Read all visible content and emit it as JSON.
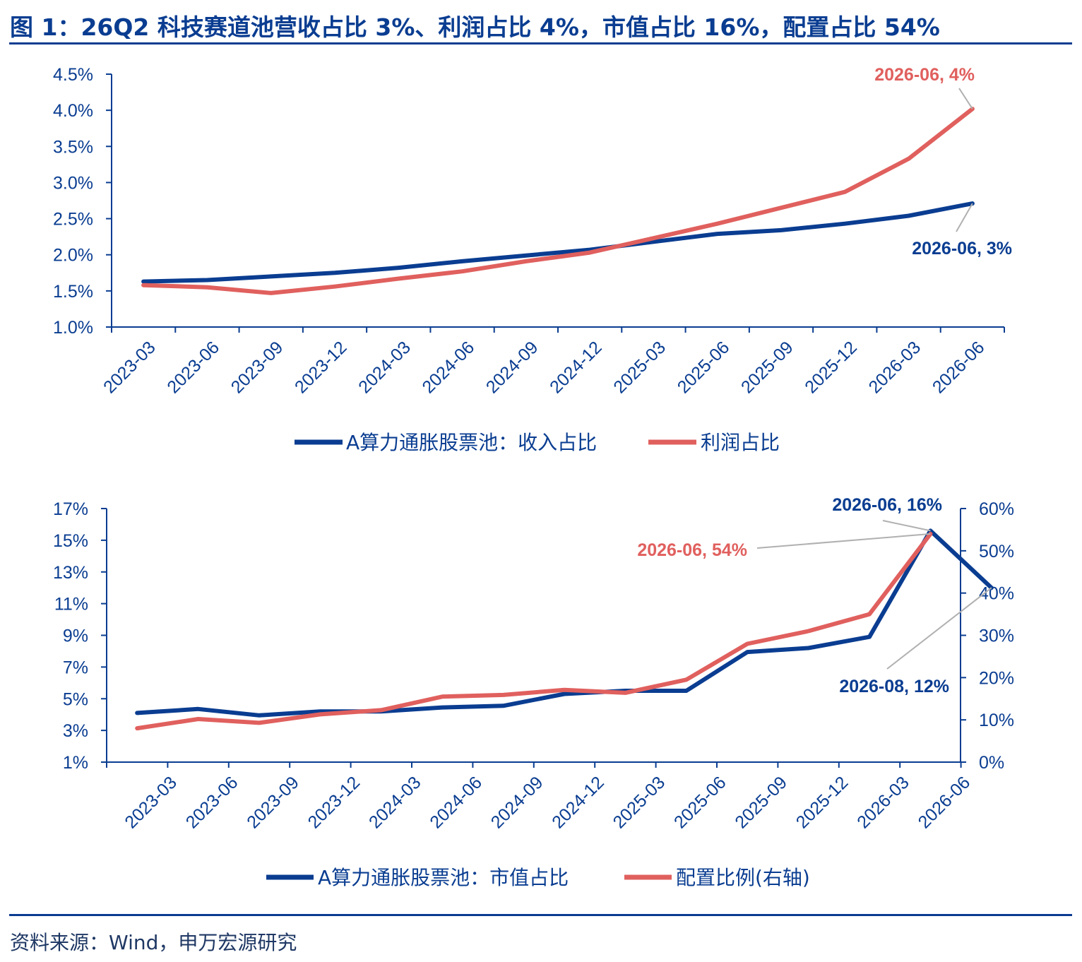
{
  "figure": {
    "title": "图 1：26Q2 科技赛道池营收占比 3%、利润占比 4%，市值占比 16%，配置占比 54%",
    "source": "资料来源：Wind，申万宏源研究"
  },
  "colors": {
    "navy": "#0a3d91",
    "red": "#e0605e",
    "leader": "#b0b0b0"
  },
  "chart_data": [
    {
      "type": "line",
      "categories": [
        "2023-03",
        "2023-06",
        "2023-09",
        "2023-12",
        "2024-03",
        "2024-06",
        "2024-09",
        "2024-12",
        "2025-03",
        "2025-06",
        "2025-09",
        "2025-12",
        "2026-03",
        "2026-06"
      ],
      "yticks": [
        "1.0%",
        "1.5%",
        "2.0%",
        "2.5%",
        "3.0%",
        "3.5%",
        "4.0%",
        "4.5%"
      ],
      "ylim": [
        1.0,
        4.5
      ],
      "series": [
        {
          "name": "A算力通胀股票池：收入占比",
          "color": "#0a3d91",
          "values": [
            1.63,
            1.65,
            1.7,
            1.75,
            1.82,
            1.91,
            1.99,
            2.07,
            2.18,
            2.29,
            2.34,
            2.43,
            2.54,
            2.71
          ]
        },
        {
          "name": "利润占比",
          "color": "#e0605e",
          "values": [
            1.58,
            1.55,
            1.47,
            1.56,
            1.67,
            1.77,
            1.91,
            2.03,
            2.23,
            2.43,
            2.65,
            2.87,
            3.33,
            4.02
          ]
        }
      ],
      "annotations": [
        {
          "text": "2026-06, 4%",
          "series": 1,
          "point": 13
        },
        {
          "text": "2026-06, 3%",
          "series": 0,
          "point": 13
        }
      ],
      "legend": "bottom-center",
      "grid": false
    },
    {
      "type": "line",
      "categories": [
        "2023-03",
        "2023-06",
        "2023-09",
        "2023-12",
        "2024-03",
        "2024-06",
        "2024-09",
        "2024-12",
        "2025-03",
        "2025-06",
        "2025-09",
        "2025-12",
        "2026-03",
        "2026-06"
      ],
      "yticks_left": [
        "1%",
        "3%",
        "5%",
        "7%",
        "9%",
        "11%",
        "13%",
        "15%",
        "17%"
      ],
      "yticks_right": [
        "0%",
        "10%",
        "20%",
        "30%",
        "40%",
        "50%",
        "60%"
      ],
      "ylim_left": [
        1,
        17
      ],
      "ylim_right": [
        0,
        60
      ],
      "series": [
        {
          "name": "A算力通胀股票池：市值占比",
          "color": "#0a3d91",
          "axis": "left",
          "x": [
            0,
            1,
            2,
            3,
            4,
            5,
            6,
            7,
            8,
            9,
            10,
            11,
            12,
            13,
            14
          ],
          "values": [
            4.1,
            4.35,
            3.95,
            4.2,
            4.2,
            4.45,
            4.55,
            5.3,
            5.5,
            5.5,
            7.95,
            8.2,
            8.9,
            15.6,
            12.0
          ]
        },
        {
          "name": "配置比例(右轴)",
          "color": "#e0605e",
          "axis": "right",
          "x": [
            0,
            1,
            2,
            3,
            4,
            5,
            6,
            7,
            8,
            9,
            10,
            11,
            12,
            13
          ],
          "values": [
            8.0,
            10.2,
            9.3,
            11.3,
            12.3,
            15.5,
            15.9,
            17.1,
            16.4,
            19.5,
            28.0,
            31.0,
            35.0,
            54.0
          ]
        }
      ],
      "annotations": [
        {
          "text": "2026-06, 16%",
          "series": 0,
          "point": 13
        },
        {
          "text": "2026-06, 54%",
          "series": 1,
          "point": 13
        },
        {
          "text": "2026-08, 12%",
          "series": 0,
          "point": 14
        }
      ],
      "legend": "bottom-center",
      "grid": false
    }
  ]
}
